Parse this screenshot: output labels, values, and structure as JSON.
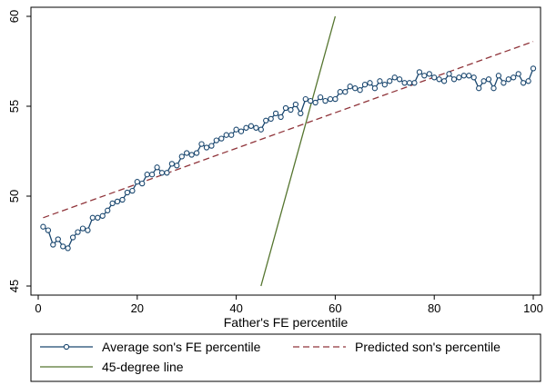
{
  "chart_data": {
    "type": "line",
    "xlabel": "Father's FE percentile",
    "ylabel": "",
    "xlim": [
      0,
      100
    ],
    "ylim": [
      45,
      60
    ],
    "xticks": [
      0,
      20,
      40,
      60,
      80,
      100
    ],
    "yticks": [
      45,
      50,
      55,
      60
    ],
    "grid": false,
    "legend_placement": "bottom",
    "series": [
      {
        "name": "Average son's FE percentile",
        "style": "line-with-hollow-circles",
        "color": "#1a476f",
        "x": [
          1,
          2,
          3,
          4,
          5,
          6,
          7,
          8,
          9,
          10,
          11,
          12,
          13,
          14,
          15,
          16,
          17,
          18,
          19,
          20,
          21,
          22,
          23,
          24,
          25,
          26,
          27,
          28,
          29,
          30,
          31,
          32,
          33,
          34,
          35,
          36,
          37,
          38,
          39,
          40,
          41,
          42,
          43,
          44,
          45,
          46,
          47,
          48,
          49,
          50,
          51,
          52,
          53,
          54,
          55,
          56,
          57,
          58,
          59,
          60,
          61,
          62,
          63,
          64,
          65,
          66,
          67,
          68,
          69,
          70,
          71,
          72,
          73,
          74,
          75,
          76,
          77,
          78,
          79,
          80,
          81,
          82,
          83,
          84,
          85,
          86,
          87,
          88,
          89,
          90,
          91,
          92,
          93,
          94,
          95,
          96,
          97,
          98,
          99,
          100
        ],
        "y": [
          48.3,
          48.1,
          47.3,
          47.6,
          47.2,
          47.1,
          47.7,
          48.0,
          48.2,
          48.1,
          48.8,
          48.8,
          48.9,
          49.2,
          49.6,
          49.7,
          49.8,
          50.2,
          50.3,
          50.8,
          50.7,
          51.2,
          51.2,
          51.6,
          51.3,
          51.3,
          51.8,
          51.7,
          52.2,
          52.4,
          52.3,
          52.4,
          52.9,
          52.7,
          52.8,
          53.1,
          53.2,
          53.4,
          53.4,
          53.7,
          53.6,
          53.8,
          53.9,
          53.8,
          53.7,
          54.2,
          54.3,
          54.6,
          54.4,
          54.9,
          54.8,
          55.1,
          54.6,
          55.4,
          55.3,
          55.2,
          55.5,
          55.3,
          55.4,
          55.4,
          55.8,
          55.8,
          56.1,
          56.0,
          55.9,
          56.2,
          56.3,
          56.0,
          56.4,
          56.2,
          56.4,
          56.6,
          56.5,
          56.3,
          56.3,
          56.3,
          56.9,
          56.7,
          56.8,
          56.6,
          56.5,
          56.4,
          56.8,
          56.5,
          56.6,
          56.7,
          56.7,
          56.6,
          56.0,
          56.4,
          56.5,
          56.0,
          56.7,
          56.3,
          56.5,
          56.6,
          56.8,
          56.3,
          56.4,
          57.1
        ]
      },
      {
        "name": "Predicted son's percentile",
        "style": "dashed",
        "color": "#90353b",
        "x": [
          1,
          100
        ],
        "y": [
          48.8,
          58.6
        ]
      },
      {
        "name": "45-degree line",
        "style": "solid",
        "color": "#55752f",
        "x": [
          45,
          60
        ],
        "y": [
          45,
          60
        ]
      }
    ]
  }
}
